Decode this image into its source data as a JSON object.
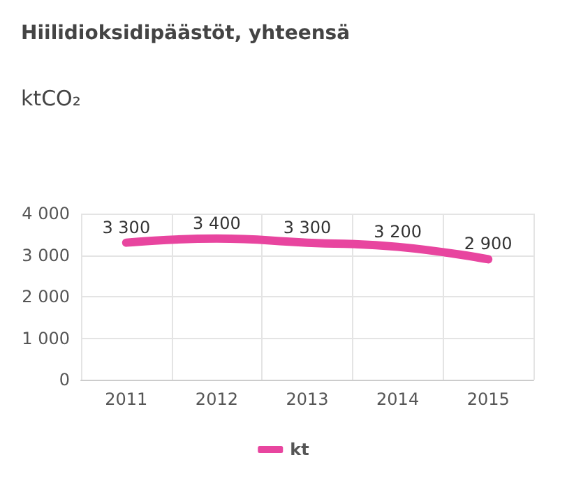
{
  "chart_data": {
    "type": "line",
    "title": "Hiilidioksidipäästöt, yhteensä",
    "ylabel": "ktCO₂",
    "categories": [
      "2011",
      "2012",
      "2013",
      "2014",
      "2015"
    ],
    "series": [
      {
        "name": "kt",
        "color": "#e8459f",
        "values": [
          3300,
          3400,
          3300,
          3200,
          2900
        ],
        "value_labels": [
          "3 300",
          "3 400",
          "3 300",
          "3 200",
          "2 900"
        ]
      }
    ],
    "ylim": [
      0,
      4000
    ],
    "yticks": [
      {
        "value": 0,
        "label": "0"
      },
      {
        "value": 1000,
        "label": "1 000"
      },
      {
        "value": 2000,
        "label": "2 000"
      },
      {
        "value": 3000,
        "label": "3 000"
      },
      {
        "value": 4000,
        "label": "4 000"
      }
    ],
    "grid": true,
    "legend": "bottom",
    "marker": "none",
    "line_style": "solid"
  }
}
